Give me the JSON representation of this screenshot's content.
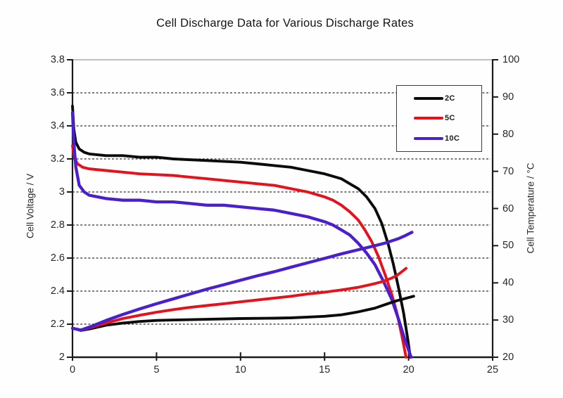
{
  "page": {
    "background": "#fefefe"
  },
  "colors": {
    "axis": "#1a1a1a",
    "grid": "#2f2f2f",
    "plot_top_border": "#9a9a9a",
    "tick_label": "#272727"
  },
  "chart_data": {
    "type": "line",
    "title": "Cell Discharge Data for Various Discharge Rates",
    "grid": "horizontal dashed gridlines at every 0.2 V / 10 °C",
    "legend_position": "inside top-right",
    "x_axis": {
      "label": "",
      "min": 0,
      "max": 25,
      "ticks": [
        0,
        5,
        10,
        15,
        20,
        25
      ]
    },
    "y_left": {
      "label": "Cell Voltage / V",
      "min": 2,
      "max": 3.8,
      "ticks": [
        3.8,
        3.6,
        3.4,
        3.2,
        3,
        2.8,
        2.6,
        2.4,
        2.2,
        2
      ]
    },
    "y_right": {
      "label": "Cell Temperature / °C",
      "min": 20,
      "max": 100,
      "ticks": [
        100,
        90,
        80,
        70,
        60,
        50,
        40,
        30,
        20
      ]
    },
    "legend": [
      {
        "label": "2C",
        "color": "#0b0b0b"
      },
      {
        "label": "5C",
        "color": "#e8101a"
      },
      {
        "label": "10C",
        "color": "#4a1fd0"
      }
    ],
    "series": [
      {
        "id": "2c-voltage",
        "name": "2C voltage",
        "axis": "left",
        "color": "#0b0b0b",
        "width": 3.9,
        "points": [
          [
            0,
            3.52
          ],
          [
            0.08,
            3.38
          ],
          [
            0.2,
            3.3
          ],
          [
            0.4,
            3.26
          ],
          [
            0.7,
            3.24
          ],
          [
            1,
            3.23
          ],
          [
            2,
            3.22
          ],
          [
            3,
            3.22
          ],
          [
            4,
            3.21
          ],
          [
            5,
            3.21
          ],
          [
            6,
            3.2
          ],
          [
            8,
            3.19
          ],
          [
            10,
            3.18
          ],
          [
            11,
            3.17
          ],
          [
            12,
            3.16
          ],
          [
            13,
            3.15
          ],
          [
            14,
            3.13
          ],
          [
            15,
            3.11
          ],
          [
            16,
            3.08
          ],
          [
            16.5,
            3.05
          ],
          [
            17,
            3.02
          ],
          [
            17.5,
            2.97
          ],
          [
            18,
            2.9
          ],
          [
            18.4,
            2.81
          ],
          [
            18.8,
            2.68
          ],
          [
            19.1,
            2.56
          ],
          [
            19.4,
            2.42
          ],
          [
            19.7,
            2.27
          ],
          [
            19.95,
            2.11
          ],
          [
            20.1,
            2.0
          ]
        ]
      },
      {
        "id": "5c-voltage",
        "name": "5C voltage",
        "axis": "left",
        "color": "#e8101a",
        "width": 3.9,
        "points": [
          [
            0,
            3.28
          ],
          [
            0.1,
            3.21
          ],
          [
            0.3,
            3.17
          ],
          [
            0.6,
            3.15
          ],
          [
            1,
            3.14
          ],
          [
            2,
            3.13
          ],
          [
            3,
            3.12
          ],
          [
            4,
            3.11
          ],
          [
            5,
            3.105
          ],
          [
            6,
            3.1
          ],
          [
            7,
            3.09
          ],
          [
            8,
            3.08
          ],
          [
            9,
            3.07
          ],
          [
            10,
            3.06
          ],
          [
            11,
            3.05
          ],
          [
            12,
            3.04
          ],
          [
            13,
            3.02
          ],
          [
            14,
            3.0
          ],
          [
            15,
            2.97
          ],
          [
            15.5,
            2.95
          ],
          [
            16,
            2.92
          ],
          [
            16.5,
            2.88
          ],
          [
            17,
            2.83
          ],
          [
            17.4,
            2.77
          ],
          [
            17.8,
            2.7
          ],
          [
            18.2,
            2.61
          ],
          [
            18.6,
            2.5
          ],
          [
            19,
            2.38
          ],
          [
            19.3,
            2.27
          ],
          [
            19.6,
            2.13
          ],
          [
            19.85,
            2.0
          ]
        ]
      },
      {
        "id": "10c-voltage",
        "name": "10C voltage",
        "axis": "left",
        "color": "#4a1fd0",
        "width": 4.3,
        "points": [
          [
            0,
            3.48
          ],
          [
            0.08,
            3.3
          ],
          [
            0.2,
            3.15
          ],
          [
            0.4,
            3.04
          ],
          [
            0.7,
            3.0
          ],
          [
            1,
            2.98
          ],
          [
            1.5,
            2.97
          ],
          [
            2,
            2.96
          ],
          [
            3,
            2.95
          ],
          [
            4,
            2.95
          ],
          [
            5,
            2.94
          ],
          [
            6,
            2.94
          ],
          [
            7,
            2.93
          ],
          [
            8,
            2.92
          ],
          [
            9,
            2.92
          ],
          [
            10,
            2.91
          ],
          [
            11,
            2.9
          ],
          [
            12,
            2.89
          ],
          [
            13,
            2.87
          ],
          [
            14,
            2.85
          ],
          [
            15,
            2.82
          ],
          [
            15.5,
            2.8
          ],
          [
            16,
            2.77
          ],
          [
            16.5,
            2.74
          ],
          [
            17,
            2.69
          ],
          [
            17.5,
            2.63
          ],
          [
            18,
            2.56
          ],
          [
            18.5,
            2.46
          ],
          [
            19,
            2.35
          ],
          [
            19.4,
            2.23
          ],
          [
            19.8,
            2.1
          ],
          [
            20.15,
            2.0
          ]
        ]
      },
      {
        "id": "2c-temperature",
        "name": "2C temperature",
        "axis": "right",
        "color": "#0b0b0b",
        "width": 3.9,
        "points": [
          [
            0,
            27.8
          ],
          [
            0.5,
            27.2
          ],
          [
            1,
            27.6
          ],
          [
            2,
            28.6
          ],
          [
            3,
            29.2
          ],
          [
            4,
            29.6
          ],
          [
            5,
            29.9
          ],
          [
            6,
            30.0
          ],
          [
            8,
            30.2
          ],
          [
            10,
            30.4
          ],
          [
            12,
            30.5
          ],
          [
            13,
            30.6
          ],
          [
            14,
            30.8
          ],
          [
            15,
            31.0
          ],
          [
            16,
            31.4
          ],
          [
            17,
            32.2
          ],
          [
            18,
            33.2
          ],
          [
            18.7,
            34.3
          ],
          [
            19.3,
            35.2
          ],
          [
            19.8,
            35.8
          ],
          [
            20.3,
            36.4
          ]
        ]
      },
      {
        "id": "5c-temperature",
        "name": "5C temperature",
        "axis": "right",
        "color": "#e8101a",
        "width": 3.9,
        "points": [
          [
            0,
            27.8
          ],
          [
            0.5,
            27.2
          ],
          [
            1,
            27.9
          ],
          [
            2,
            29.2
          ],
          [
            3,
            30.4
          ],
          [
            4,
            31.3
          ],
          [
            5,
            32.1
          ],
          [
            6,
            32.8
          ],
          [
            7,
            33.4
          ],
          [
            8,
            33.9
          ],
          [
            9,
            34.4
          ],
          [
            10,
            34.9
          ],
          [
            11,
            35.4
          ],
          [
            12,
            35.9
          ],
          [
            13,
            36.4
          ],
          [
            14,
            37.0
          ],
          [
            15,
            37.5
          ],
          [
            16,
            38.1
          ],
          [
            17,
            38.8
          ],
          [
            18,
            39.8
          ],
          [
            18.5,
            40.4
          ],
          [
            19,
            41.3
          ],
          [
            19.3,
            42.0
          ],
          [
            19.6,
            43.0
          ],
          [
            19.85,
            43.9
          ]
        ]
      },
      {
        "id": "10c-temperature",
        "name": "10C temperature",
        "axis": "right",
        "color": "#4a1fd0",
        "width": 4.3,
        "points": [
          [
            0,
            27.8
          ],
          [
            0.5,
            27.3
          ],
          [
            1,
            28.1
          ],
          [
            2,
            29.9
          ],
          [
            3,
            31.5
          ],
          [
            4,
            33.0
          ],
          [
            5,
            34.4
          ],
          [
            6,
            35.7
          ],
          [
            7,
            37.0
          ],
          [
            8,
            38.3
          ],
          [
            9,
            39.5
          ],
          [
            10,
            40.7
          ],
          [
            11,
            41.9
          ],
          [
            12,
            43.0
          ],
          [
            13,
            44.2
          ],
          [
            14,
            45.4
          ],
          [
            15,
            46.6
          ],
          [
            16,
            47.8
          ],
          [
            17,
            48.9
          ],
          [
            18,
            50.0
          ],
          [
            18.6,
            50.7
          ],
          [
            19,
            51.3
          ],
          [
            19.4,
            51.9
          ],
          [
            19.8,
            52.7
          ],
          [
            20.2,
            53.6
          ]
        ]
      }
    ]
  }
}
